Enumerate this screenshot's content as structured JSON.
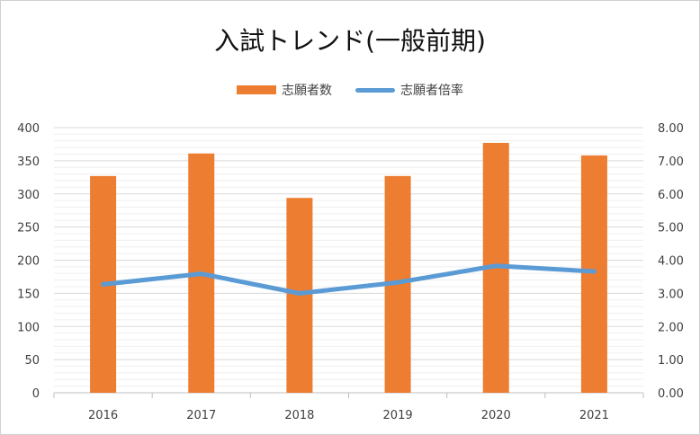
{
  "chart_data": {
    "type": "bar",
    "title": "入試トレンド(一般前期)",
    "categories": [
      "2016",
      "2017",
      "2018",
      "2019",
      "2020",
      "2021"
    ],
    "series": [
      {
        "name": "志願者数",
        "type": "bar",
        "axis": "left",
        "color": "#ED7D31",
        "values": [
          327,
          361,
          294,
          327,
          377,
          358
        ]
      },
      {
        "name": "志願者倍率",
        "type": "line",
        "axis": "right",
        "color": "#5B9BD5",
        "values": [
          3.27,
          3.59,
          3.0,
          3.33,
          3.83,
          3.66
        ]
      }
    ],
    "y_left": {
      "min": 0,
      "max": 400,
      "step": 50,
      "ticks": [
        "0",
        "50",
        "100",
        "150",
        "200",
        "250",
        "300",
        "350",
        "400"
      ]
    },
    "y_right": {
      "min": 0,
      "max": 8,
      "step": 1,
      "ticks": [
        "0.00",
        "1.00",
        "2.00",
        "3.00",
        "4.00",
        "5.00",
        "6.00",
        "7.00",
        "8.00"
      ]
    },
    "grid": true,
    "legend_position": "top"
  }
}
